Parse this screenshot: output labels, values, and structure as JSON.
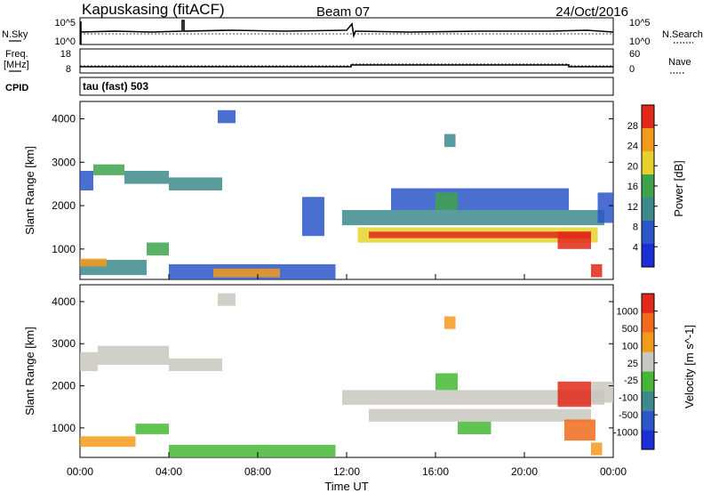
{
  "header": {
    "station": "Kapuskasing (fitACF)",
    "beam": "Beam 07",
    "date": "24/Oct/2016"
  },
  "nsky_panel": {
    "left_label": "N.Sky",
    "right_label": "N.Search",
    "left_ticks": [
      "10^5",
      "10^0"
    ],
    "right_ticks": [
      "10^5",
      "10^0"
    ]
  },
  "freq_panel": {
    "left_label_1": "Freq.",
    "left_label_2": "[MHz]",
    "right_label": "Nave",
    "left_ticks": [
      "18",
      "8"
    ],
    "right_ticks": [
      "60",
      "0"
    ]
  },
  "cpid_panel": {
    "label": "CPID",
    "mode_text": "tau (fast) 503"
  },
  "colors": {
    "scale_blue_dark": "#1a2fd6",
    "scale_blue": "#2a56c8",
    "scale_teal": "#3d8a8c",
    "scale_green": "#3fa34d",
    "scale_yellow": "#e6d22a",
    "scale_orange": "#f39a1c",
    "scale_red": "#e22818",
    "vel_gray": "#c8c8c0"
  },
  "chart_data": [
    {
      "type": "heatmap",
      "panel": "power",
      "ylabel": "Slant Range [km]",
      "ylim": [
        300,
        4400
      ],
      "yticks": [
        "1000",
        "2000",
        "3000",
        "4000"
      ],
      "xlim": [
        0,
        24
      ],
      "colorbar": {
        "label": "Power [dB]",
        "ticks": [
          "4",
          "8",
          "12",
          "16",
          "20",
          "24",
          "28"
        ],
        "colors": [
          "#1a2fd6",
          "#2a56c8",
          "#3d8a8c",
          "#3fa34d",
          "#e6d22a",
          "#f39a1c",
          "#e22818"
        ]
      },
      "bands": [
        {
          "t0": 0.0,
          "t1": 0.6,
          "r0": 2350,
          "r1": 2800,
          "c": "#2a56c8"
        },
        {
          "t0": 0.6,
          "t1": 2.0,
          "r0": 2700,
          "r1": 2950,
          "c": "#3fa34d"
        },
        {
          "t0": 2.0,
          "t1": 4.0,
          "r0": 2500,
          "r1": 2800,
          "c": "#3d8a8c"
        },
        {
          "t0": 4.0,
          "t1": 6.4,
          "r0": 2350,
          "r1": 2650,
          "c": "#3d8a8c"
        },
        {
          "t0": 0.0,
          "t1": 3.0,
          "r0": 400,
          "r1": 750,
          "c": "#3d8a8c"
        },
        {
          "t0": 0.0,
          "t1": 1.2,
          "r0": 600,
          "r1": 780,
          "c": "#f39a1c"
        },
        {
          "t0": 3.0,
          "t1": 4.0,
          "r0": 850,
          "r1": 1150,
          "c": "#3fa34d"
        },
        {
          "t0": 4.0,
          "t1": 11.5,
          "r0": 300,
          "r1": 650,
          "c": "#2a56c8"
        },
        {
          "t0": 6.0,
          "t1": 9.0,
          "r0": 350,
          "r1": 550,
          "c": "#f39a1c"
        },
        {
          "t0": 10.0,
          "t1": 11.0,
          "r0": 1300,
          "r1": 2200,
          "c": "#2a56c8"
        },
        {
          "t0": 11.8,
          "t1": 23.6,
          "r0": 1550,
          "r1": 1900,
          "c": "#3d8a8c"
        },
        {
          "t0": 12.5,
          "t1": 23.3,
          "r0": 1150,
          "r1": 1500,
          "c": "#e6d22a"
        },
        {
          "t0": 13.0,
          "t1": 23.0,
          "r0": 1250,
          "r1": 1400,
          "c": "#e22818"
        },
        {
          "t0": 14.0,
          "t1": 22.0,
          "r0": 1900,
          "r1": 2400,
          "c": "#2a56c8"
        },
        {
          "t0": 16.0,
          "t1": 17.0,
          "r0": 1900,
          "r1": 2300,
          "c": "#3fa34d"
        },
        {
          "t0": 21.5,
          "t1": 23.0,
          "r0": 1000,
          "r1": 1400,
          "c": "#e22818"
        },
        {
          "t0": 23.3,
          "t1": 24.0,
          "r0": 1600,
          "r1": 2300,
          "c": "#2a56c8"
        },
        {
          "t0": 6.2,
          "t1": 7.0,
          "r0": 3900,
          "r1": 4200,
          "c": "#2a56c8"
        },
        {
          "t0": 16.4,
          "t1": 16.9,
          "r0": 3350,
          "r1": 3650,
          "c": "#3d8a8c"
        },
        {
          "t0": 23.0,
          "t1": 23.5,
          "r0": 350,
          "r1": 650,
          "c": "#e22818"
        }
      ]
    },
    {
      "type": "heatmap",
      "panel": "velocity",
      "ylabel": "Slant Range [km]",
      "ylim": [
        300,
        4400
      ],
      "yticks": [
        "1000",
        "2000",
        "3000",
        "4000"
      ],
      "xlabel": "Time UT",
      "xlim": [
        0,
        24
      ],
      "xticks": [
        "00:00",
        "04:00",
        "08:00",
        "12:00",
        "16:00",
        "20:00",
        "00:00"
      ],
      "colorbar": {
        "label": "Velocity [m s^-1]",
        "ticks": [
          "1000",
          "500",
          "100",
          "25",
          "-25",
          "-100",
          "-500",
          "-1000"
        ],
        "colors": [
          "#1a2fd6",
          "#2a56c8",
          "#3d8a8c",
          "#44b834",
          "#c8c8c0",
          "#f39a1c",
          "#f06a1c",
          "#e22818"
        ]
      },
      "bands": [
        {
          "t0": 0.0,
          "t1": 0.8,
          "r0": 2350,
          "r1": 2800,
          "c": "#c8c8c0"
        },
        {
          "t0": 0.8,
          "t1": 4.0,
          "r0": 2500,
          "r1": 2950,
          "c": "#c8c8c0"
        },
        {
          "t0": 4.0,
          "t1": 6.4,
          "r0": 2350,
          "r1": 2650,
          "c": "#c8c8c0"
        },
        {
          "t0": 0.0,
          "t1": 2.5,
          "r0": 550,
          "r1": 800,
          "c": "#f39a1c"
        },
        {
          "t0": 2.5,
          "t1": 4.0,
          "r0": 850,
          "r1": 1100,
          "c": "#44b834"
        },
        {
          "t0": 4.0,
          "t1": 11.5,
          "r0": 300,
          "r1": 600,
          "c": "#44b834"
        },
        {
          "t0": 11.8,
          "t1": 23.6,
          "r0": 1550,
          "r1": 1900,
          "c": "#c8c8c0"
        },
        {
          "t0": 13.0,
          "t1": 23.0,
          "r0": 1150,
          "r1": 1450,
          "c": "#c8c8c0"
        },
        {
          "t0": 16.0,
          "t1": 17.0,
          "r0": 1900,
          "r1": 2300,
          "c": "#44b834"
        },
        {
          "t0": 17.0,
          "t1": 18.5,
          "r0": 850,
          "r1": 1150,
          "c": "#44b834"
        },
        {
          "t0": 21.5,
          "t1": 23.0,
          "r0": 1500,
          "r1": 2100,
          "c": "#e22818"
        },
        {
          "t0": 21.8,
          "t1": 23.2,
          "r0": 700,
          "r1": 1200,
          "c": "#f06a1c"
        },
        {
          "t0": 23.0,
          "t1": 24.0,
          "r0": 1600,
          "r1": 2100,
          "c": "#c8c8c0"
        },
        {
          "t0": 6.2,
          "t1": 7.0,
          "r0": 3900,
          "r1": 4200,
          "c": "#c8c8c0"
        },
        {
          "t0": 16.4,
          "t1": 16.9,
          "r0": 3350,
          "r1": 3650,
          "c": "#f39a1c"
        },
        {
          "t0": 23.0,
          "t1": 23.5,
          "r0": 350,
          "r1": 650,
          "c": "#f39a1c"
        }
      ]
    }
  ]
}
